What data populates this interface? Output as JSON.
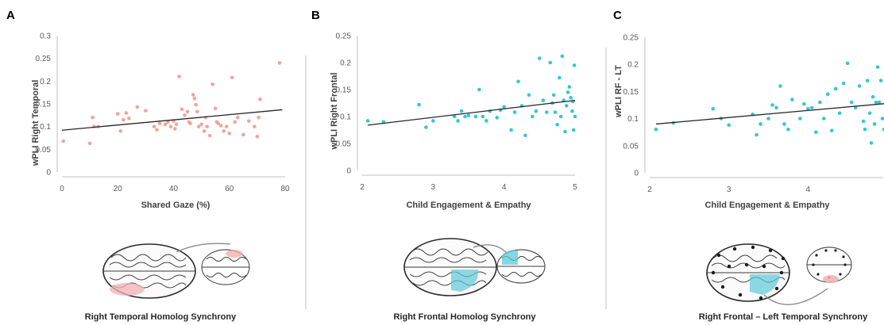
{
  "colors": {
    "panel_a": "#f4a29b",
    "panel_b": "#36c6d3",
    "panel_c": "#36c6d3",
    "fit_line": "#262626",
    "region_red": "#f1b0b0",
    "region_blue": "#5ec7d8"
  },
  "chart_data": [
    {
      "type": "scatter",
      "panel": "A",
      "xlabel": "Shared Gaze (%)",
      "ylabel": "wPLI Right Temporal",
      "caption": "Right Temporal Homolog Synchrony",
      "xlim": [
        0,
        80
      ],
      "ylim": [
        0,
        0.3
      ],
      "xticks": [
        "0",
        "20",
        "40",
        "60",
        "80"
      ],
      "yticks": [
        "0",
        "0.05",
        "0.1",
        "0.15",
        "0.2",
        "0.25",
        "0.3"
      ],
      "grid": false,
      "trend": {
        "x": [
          0,
          79
        ],
        "y": [
          0.092,
          0.137
        ]
      },
      "points": [
        [
          0.5,
          0.068
        ],
        [
          10,
          0.063
        ],
        [
          11,
          0.12
        ],
        [
          11.5,
          0.1
        ],
        [
          13,
          0.1
        ],
        [
          20,
          0.128
        ],
        [
          21,
          0.09
        ],
        [
          22,
          0.115
        ],
        [
          23,
          0.13
        ],
        [
          24,
          0.118
        ],
        [
          27,
          0.143
        ],
        [
          30,
          0.135
        ],
        [
          33,
          0.1
        ],
        [
          34,
          0.093
        ],
        [
          35,
          0.107
        ],
        [
          37,
          0.105
        ],
        [
          38,
          0.11
        ],
        [
          39,
          0.1
        ],
        [
          40,
          0.112
        ],
        [
          40.5,
          0.095
        ],
        [
          41,
          0.105
        ],
        [
          42,
          0.21
        ],
        [
          43,
          0.138
        ],
        [
          44,
          0.125
        ],
        [
          45,
          0.133
        ],
        [
          45.5,
          0.11
        ],
        [
          46,
          0.107
        ],
        [
          47,
          0.17
        ],
        [
          47.5,
          0.162
        ],
        [
          48,
          0.148
        ],
        [
          48.5,
          0.133
        ],
        [
          49,
          0.1
        ],
        [
          50,
          0.105
        ],
        [
          51,
          0.09
        ],
        [
          51.5,
          0.12
        ],
        [
          52,
          0.1
        ],
        [
          53,
          0.08
        ],
        [
          54,
          0.193
        ],
        [
          55,
          0.14
        ],
        [
          55.5,
          0.11
        ],
        [
          56,
          0.107
        ],
        [
          57,
          0.102
        ],
        [
          58,
          0.09
        ],
        [
          59,
          0.1
        ],
        [
          60,
          0.085
        ],
        [
          61,
          0.208
        ],
        [
          62,
          0.11
        ],
        [
          63,
          0.12
        ],
        [
          65,
          0.082
        ],
        [
          67,
          0.112
        ],
        [
          69,
          0.1
        ],
        [
          70,
          0.078
        ],
        [
          70.5,
          0.12
        ],
        [
          71,
          0.16
        ],
        [
          78,
          0.24
        ]
      ]
    },
    {
      "type": "scatter",
      "panel": "B",
      "xlabel": "Child Engagement & Empathy",
      "ylabel": "wPLI Right Frontal",
      "caption": "Right Frontal Homolog Synchrony",
      "xlim": [
        2,
        5
      ],
      "ylim": [
        0,
        0.25
      ],
      "xticks": [
        "2",
        "3",
        "4",
        "5"
      ],
      "yticks": [
        "0",
        "0.05",
        "0.1",
        "0.15",
        "0.2",
        "0.25"
      ],
      "grid": false,
      "trend": {
        "x": [
          2.08,
          5.0
        ],
        "y": [
          0.084,
          0.13
        ]
      },
      "points": [
        [
          2.08,
          0.092
        ],
        [
          2.3,
          0.09
        ],
        [
          2.8,
          0.122
        ],
        [
          2.9,
          0.08
        ],
        [
          3.0,
          0.092
        ],
        [
          3.3,
          0.1
        ],
        [
          3.35,
          0.092
        ],
        [
          3.4,
          0.11
        ],
        [
          3.45,
          0.1
        ],
        [
          3.5,
          0.102
        ],
        [
          3.6,
          0.1
        ],
        [
          3.65,
          0.15
        ],
        [
          3.7,
          0.1
        ],
        [
          3.75,
          0.092
        ],
        [
          3.8,
          0.11
        ],
        [
          3.9,
          0.098
        ],
        [
          3.95,
          0.112
        ],
        [
          4.0,
          0.118
        ],
        [
          4.1,
          0.075
        ],
        [
          4.15,
          0.108
        ],
        [
          4.2,
          0.165
        ],
        [
          4.25,
          0.12
        ],
        [
          4.3,
          0.065
        ],
        [
          4.35,
          0.14
        ],
        [
          4.4,
          0.1
        ],
        [
          4.45,
          0.11
        ],
        [
          4.5,
          0.208
        ],
        [
          4.55,
          0.13
        ],
        [
          4.6,
          0.108
        ],
        [
          4.65,
          0.2
        ],
        [
          4.68,
          0.125
        ],
        [
          4.7,
          0.14
        ],
        [
          4.72,
          0.108
        ],
        [
          4.75,
          0.085
        ],
        [
          4.78,
          0.172
        ],
        [
          4.8,
          0.1
        ],
        [
          4.82,
          0.212
        ],
        [
          4.84,
          0.13
        ],
        [
          4.86,
          0.072
        ],
        [
          4.88,
          0.12
        ],
        [
          4.9,
          0.145
        ],
        [
          4.92,
          0.155
        ],
        [
          4.94,
          0.135
        ],
        [
          4.96,
          0.11
        ],
        [
          4.98,
          0.075
        ],
        [
          5.0,
          0.1
        ],
        [
          4.99,
          0.195
        ],
        [
          4.97,
          0.128
        ]
      ]
    },
    {
      "type": "scatter",
      "panel": "C",
      "xlabel": "Child Engagement & Empathy",
      "ylabel": "wPLI RF - LT",
      "caption": "Right Frontal – Left Temporal Synchrony",
      "xlim": [
        2,
        5
      ],
      "ylim": [
        0,
        0.25
      ],
      "xticks": [
        "2",
        "3",
        "4"
      ],
      "yticks": [
        "0",
        "0.05",
        "0.1",
        "0.15",
        "0.2",
        "0.25"
      ],
      "grid": false,
      "trend": {
        "x": [
          2.08,
          5.0
        ],
        "y": [
          0.09,
          0.128
        ]
      },
      "points": [
        [
          2.08,
          0.08
        ],
        [
          2.3,
          0.092
        ],
        [
          2.8,
          0.118
        ],
        [
          2.9,
          0.1
        ],
        [
          3.0,
          0.088
        ],
        [
          3.3,
          0.108
        ],
        [
          3.35,
          0.07
        ],
        [
          3.4,
          0.09
        ],
        [
          3.5,
          0.1
        ],
        [
          3.55,
          0.125
        ],
        [
          3.6,
          0.12
        ],
        [
          3.65,
          0.16
        ],
        [
          3.7,
          0.09
        ],
        [
          3.75,
          0.08
        ],
        [
          3.8,
          0.135
        ],
        [
          3.9,
          0.1
        ],
        [
          3.95,
          0.127
        ],
        [
          4.0,
          0.118
        ],
        [
          4.05,
          0.12
        ],
        [
          4.1,
          0.075
        ],
        [
          4.15,
          0.13
        ],
        [
          4.2,
          0.1
        ],
        [
          4.25,
          0.145
        ],
        [
          4.3,
          0.078
        ],
        [
          4.35,
          0.155
        ],
        [
          4.4,
          0.11
        ],
        [
          4.45,
          0.165
        ],
        [
          4.5,
          0.202
        ],
        [
          4.55,
          0.13
        ],
        [
          4.6,
          0.12
        ],
        [
          4.65,
          0.16
        ],
        [
          4.7,
          0.095
        ],
        [
          4.72,
          0.08
        ],
        [
          4.75,
          0.17
        ],
        [
          4.78,
          0.11
        ],
        [
          4.8,
          0.055
        ],
        [
          4.82,
          0.14
        ],
        [
          4.84,
          0.09
        ],
        [
          4.86,
          0.13
        ],
        [
          4.88,
          0.195
        ],
        [
          4.9,
          0.13
        ],
        [
          4.92,
          0.17
        ],
        [
          4.94,
          0.1
        ],
        [
          4.96,
          0.08
        ],
        [
          4.98,
          0.12
        ],
        [
          4.99,
          0.185
        ]
      ]
    }
  ]
}
